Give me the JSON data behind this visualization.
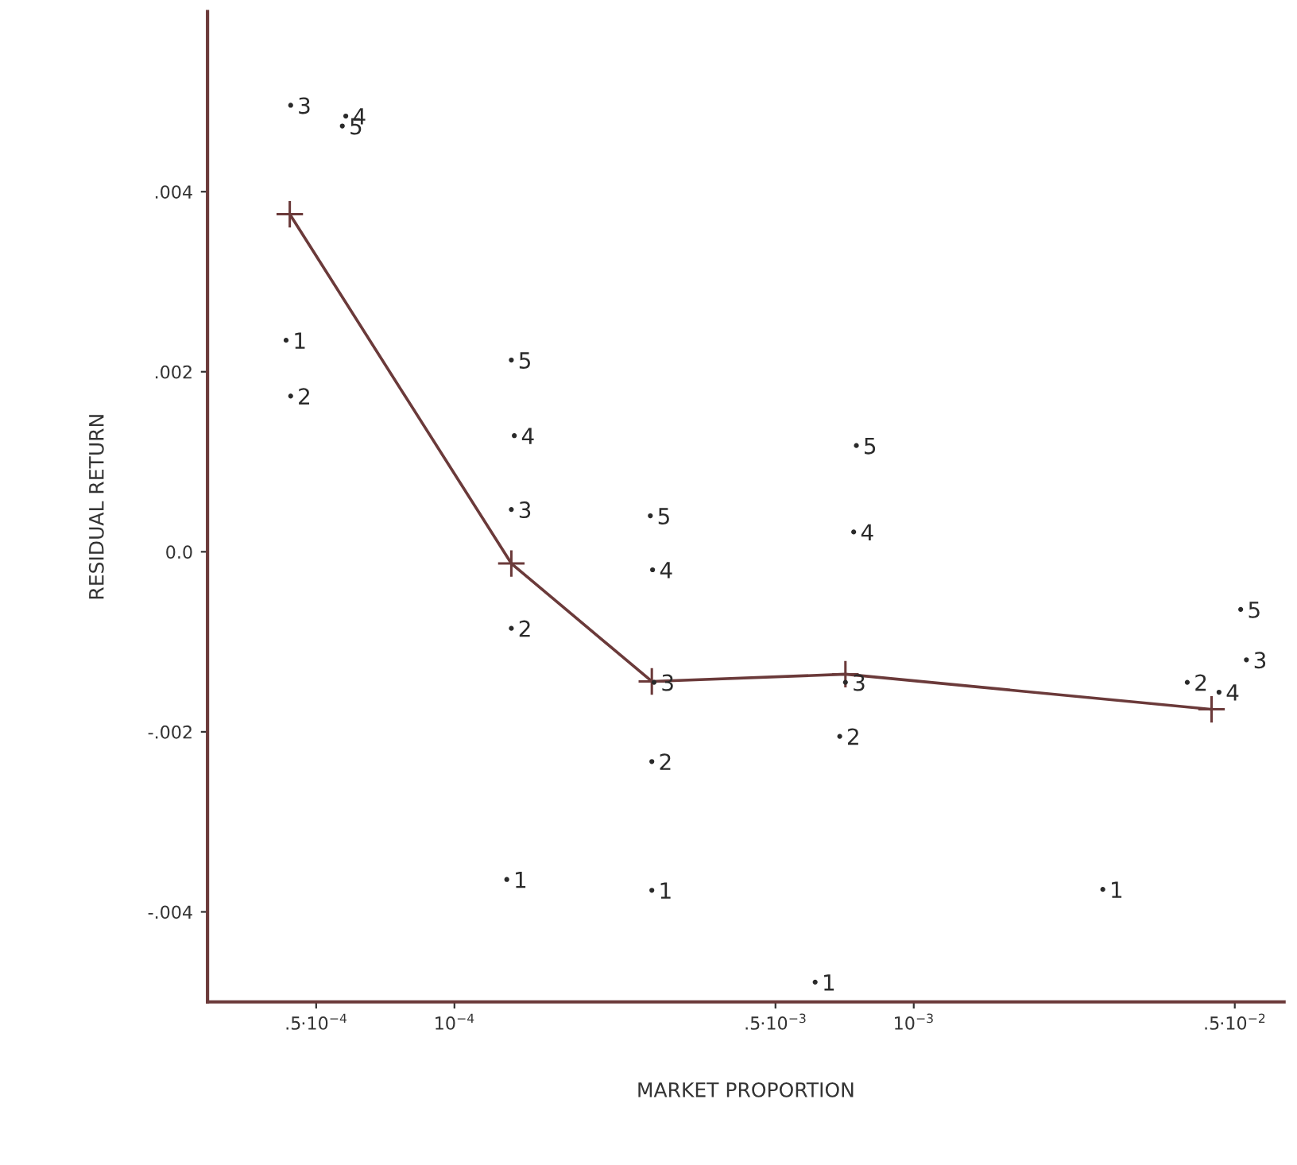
{
  "chart_data": {
    "type": "scatter",
    "xlabel": "MARKET PROPORTION",
    "ylabel": "RESIDUAL RETURN",
    "log": "x",
    "xlim": [
      2.9e-05,
      0.0064
    ],
    "ylim": [
      -0.005,
      0.006
    ],
    "xticks": [
      {
        "value": 5e-05,
        "label": ".5·10$^{−4}$"
      },
      {
        "value": 0.0001,
        "label": "10$^{−4}$"
      },
      {
        "value": 0.0005,
        "label": ".5·10$^{−3}$"
      },
      {
        "value": 0.001,
        "label": "10$^{−3}$"
      },
      {
        "value": 0.005,
        "label": ".5·10$^{−2}$"
      }
    ],
    "yticks": [
      {
        "value": 0.004,
        "label": ".004"
      },
      {
        "value": 0.002,
        "label": ".002"
      },
      {
        "value": 0,
        "label": "0.0"
      },
      {
        "value": -0.002,
        "label": "-.002"
      },
      {
        "value": -0.004,
        "label": "-.004"
      }
    ],
    "grid": false,
    "legend": false,
    "series": [
      {
        "name": "1",
        "color": "#2a2a2a",
        "x": [
          4.3e-05,
          0.00013,
          0.000269,
          0.00061,
          0.00258
        ],
        "values": [
          0.00235,
          -0.00364,
          -0.00376,
          -0.00478,
          -0.00375
        ]
      },
      {
        "name": "2",
        "color": "#2a2a2a",
        "x": [
          4.4e-05,
          0.000133,
          0.000269,
          0.00069,
          0.00394
        ],
        "values": [
          0.00173,
          -0.00085,
          -0.00233,
          -0.00205,
          -0.00145
        ]
      },
      {
        "name": "3",
        "color": "#2a2a2a",
        "x": [
          4.4e-05,
          0.000133,
          0.000272,
          0.00071,
          0.0053
        ],
        "values": [
          0.00496,
          0.00047,
          -0.00145,
          -0.00145,
          -0.0012
        ]
      },
      {
        "name": "4",
        "color": "#2a2a2a",
        "x": [
          5.8e-05,
          0.000135,
          0.00027,
          0.00074,
          0.00462
        ],
        "values": [
          0.00484,
          0.00129,
          -0.0002,
          0.00022,
          -0.00156
        ]
      },
      {
        "name": "5",
        "color": "#2a2a2a",
        "x": [
          5.7e-05,
          0.000133,
          0.000267,
          0.00075,
          0.00515
        ],
        "values": [
          0.00473,
          0.00213,
          0.0004,
          0.00118,
          -0.00064
        ]
      },
      {
        "type": "line",
        "color": "#6b3a3a",
        "marker": "cross",
        "x": [
          4.38e-05,
          0.000133,
          0.000269,
          0.00071,
          0.00445
        ],
        "values": [
          0.00375,
          -0.00013,
          -0.00144,
          -0.00136,
          -0.00175
        ]
      }
    ]
  }
}
